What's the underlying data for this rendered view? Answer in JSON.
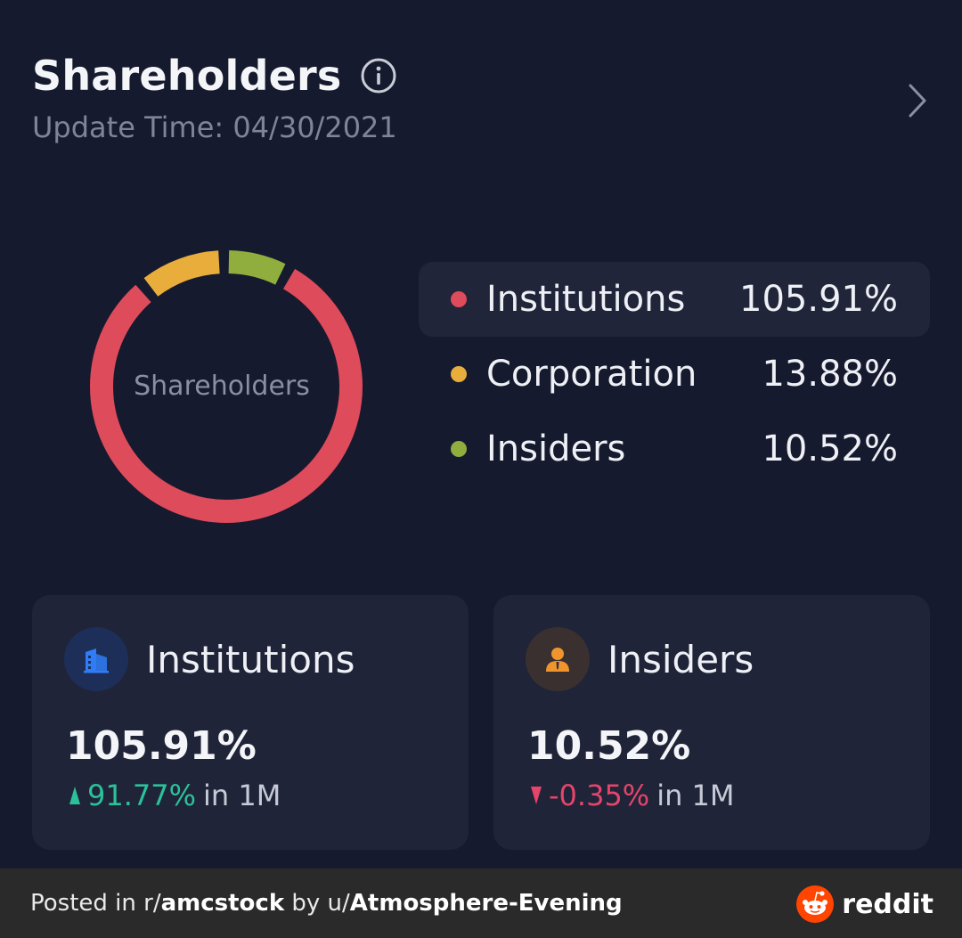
{
  "header": {
    "title": "Shareholders",
    "update_time": "Update Time: 04/30/2021"
  },
  "chart_data": {
    "type": "pie",
    "center_label": "Shareholders",
    "slices": [
      {
        "name": "Institutions",
        "value": 105.91,
        "label": "105.91%",
        "color": "#de4b5b"
      },
      {
        "name": "Corporation",
        "value": 13.88,
        "label": "13.88%",
        "color": "#e8ad3a"
      },
      {
        "name": "Insiders",
        "value": 10.52,
        "label": "10.52%",
        "color": "#8fae3d"
      }
    ],
    "legend_placement": "right"
  },
  "cards": {
    "institutions": {
      "title": "Institutions",
      "value": "105.91%",
      "change": "91.77%",
      "suffix": "in 1M",
      "icon": "building-icon",
      "icon_color": "#2f7cf6"
    },
    "insiders": {
      "title": "Insiders",
      "value": "10.52%",
      "change": "-0.35%",
      "suffix": "in 1M",
      "icon": "person-icon",
      "icon_color": "#f0952e"
    }
  },
  "footer": {
    "posted_in": "Posted in r/",
    "subreddit": "amcstock",
    "by": " by u/",
    "user": "Atmosphere-Evening",
    "brand": "reddit"
  }
}
